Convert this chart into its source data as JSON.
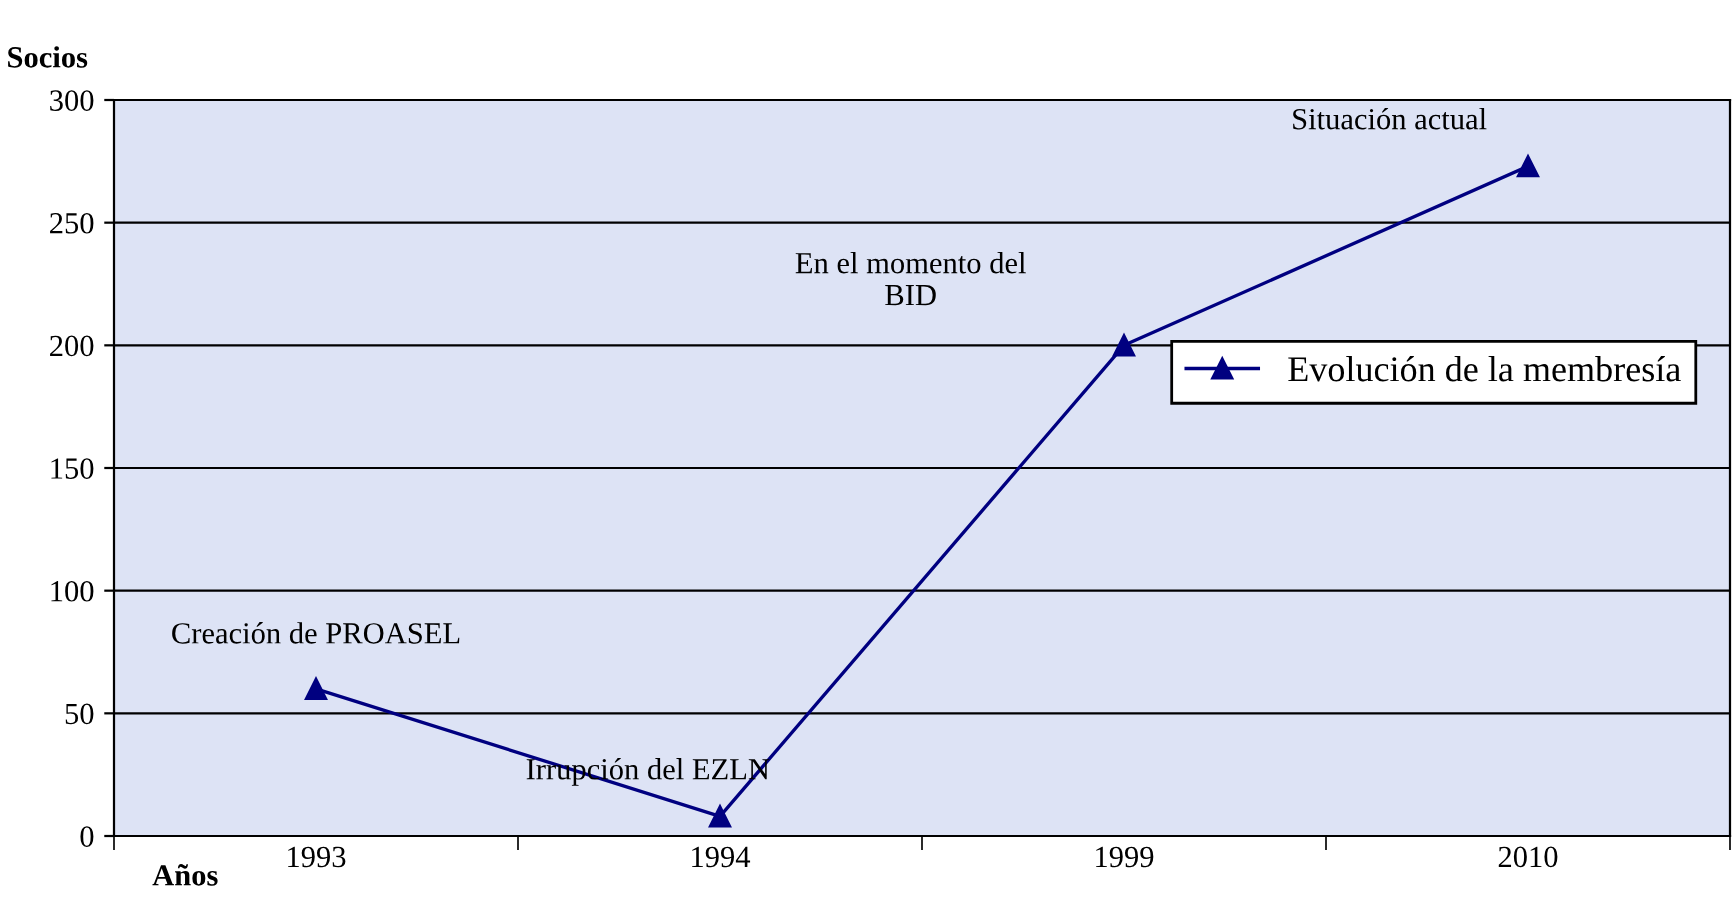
{
  "chart_data": {
    "type": "line",
    "ylabel": "Socios",
    "xlabel": "Años",
    "categories": [
      "1993",
      "1994",
      "1999",
      "2010"
    ],
    "series": [
      {
        "name": "Evolución de la membresía",
        "color": "#000080",
        "values": [
          60,
          8,
          200,
          273
        ]
      }
    ],
    "ylim": [
      0,
      300
    ],
    "yticks": [
      0,
      50,
      100,
      150,
      200,
      250,
      300
    ],
    "grid": "y",
    "legend": "right",
    "marker": "triangle",
    "line_style": "solid",
    "annotations": [
      {
        "text": "Creación de PROASEL",
        "x": "1993",
        "y": 60
      },
      {
        "text": "Irrupción del EZLN",
        "x": "1994",
        "y": 8
      },
      "En el momento del\nBID",
      {
        "text": "Situación actual",
        "x": "2010",
        "y": 273
      }
    ]
  }
}
